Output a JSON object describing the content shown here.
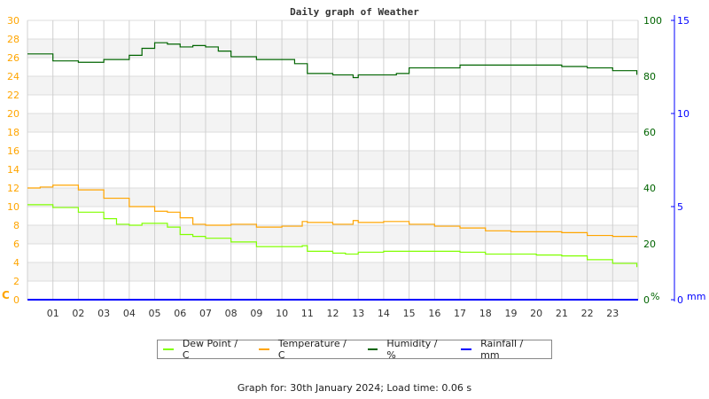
{
  "chart_data": {
    "type": "line",
    "title": "Daily graph of Weather",
    "x_ticks": [
      "01",
      "02",
      "03",
      "04",
      "05",
      "06",
      "07",
      "08",
      "09",
      "10",
      "11",
      "12",
      "13",
      "14",
      "15",
      "16",
      "17",
      "18",
      "19",
      "20",
      "21",
      "22",
      "23"
    ],
    "xlim": [
      0,
      24
    ],
    "axes": {
      "left": {
        "unit": "C",
        "ylim": [
          0,
          30
        ],
        "ticks": [
          0,
          2,
          4,
          6,
          8,
          10,
          12,
          14,
          16,
          18,
          20,
          22,
          24,
          26,
          28,
          30
        ],
        "color": "#ffa500"
      },
      "right1": {
        "unit": "%",
        "ylim": [
          0,
          100
        ],
        "ticks": [
          0,
          20,
          40,
          60,
          80,
          100
        ],
        "color": "#006400"
      },
      "right2": {
        "unit": "mm",
        "ylim": [
          0,
          15
        ],
        "ticks": [
          0,
          5,
          10,
          15
        ],
        "color": "#0000ff"
      }
    },
    "grid": true,
    "legend_placement": "bottom",
    "series": [
      {
        "name": "Dew Point / C",
        "axis": "left",
        "color": "#80ff00",
        "x": [
          0,
          0.8,
          1,
          2,
          3,
          3.5,
          4,
          4.5,
          5,
          5.5,
          6,
          6.5,
          7,
          8,
          9,
          10,
          10.8,
          11,
          12,
          12.5,
          13,
          14,
          15,
          16,
          17,
          18,
          19,
          20,
          21,
          22,
          23,
          23.95
        ],
        "y": [
          10.2,
          10.2,
          9.9,
          9.4,
          8.7,
          8.1,
          8.0,
          8.2,
          8.2,
          7.8,
          7.0,
          6.8,
          6.6,
          6.2,
          5.7,
          5.7,
          5.8,
          5.2,
          5.0,
          4.9,
          5.1,
          5.2,
          5.2,
          5.2,
          5.1,
          4.9,
          4.9,
          4.8,
          4.7,
          4.3,
          3.9,
          3.5
        ]
      },
      {
        "name": "Temperature / C",
        "axis": "left",
        "color": "#ffa500",
        "x": [
          0,
          0.5,
          1,
          2,
          3,
          4,
          5,
          5.5,
          6,
          6.5,
          7,
          8,
          9,
          10,
          10.8,
          11,
          12,
          12.8,
          13,
          14,
          15,
          16,
          17,
          18,
          19,
          20,
          21,
          22,
          23,
          23.95
        ],
        "y": [
          12.0,
          12.1,
          12.3,
          11.8,
          10.9,
          10.0,
          9.5,
          9.4,
          8.8,
          8.1,
          8.0,
          8.1,
          7.8,
          7.9,
          8.4,
          8.3,
          8.1,
          8.5,
          8.3,
          8.4,
          8.1,
          7.9,
          7.7,
          7.4,
          7.3,
          7.3,
          7.2,
          6.9,
          6.8,
          6.7
        ]
      },
      {
        "name": "Humidity / %",
        "axis": "right1",
        "color": "#006400",
        "x": [
          0,
          0.8,
          1,
          2,
          3,
          3.5,
          4,
          4.5,
          5,
          5.5,
          6,
          6.5,
          7,
          7.5,
          8,
          9,
          10,
          10.5,
          11,
          12,
          12.8,
          13,
          14,
          14.5,
          15,
          16,
          17,
          18,
          19,
          20,
          21,
          22,
          23,
          23.95
        ],
        "y": [
          88,
          88,
          85.5,
          85,
          86,
          86,
          87.5,
          90,
          92,
          91.5,
          90.5,
          91,
          90.5,
          89,
          87,
          86,
          86,
          84.5,
          81,
          80.5,
          79.5,
          80.5,
          80.5,
          81,
          83,
          83,
          84,
          84,
          84,
          84,
          83.5,
          83,
          82,
          80.5
        ]
      },
      {
        "name": "Rainfall / mm",
        "axis": "right2",
        "color": "#0000ff",
        "x": [
          0,
          24
        ],
        "y": [
          0,
          0
        ]
      }
    ]
  },
  "footer": "Graph for: 30th January 2024; Load time: 0.06 s"
}
